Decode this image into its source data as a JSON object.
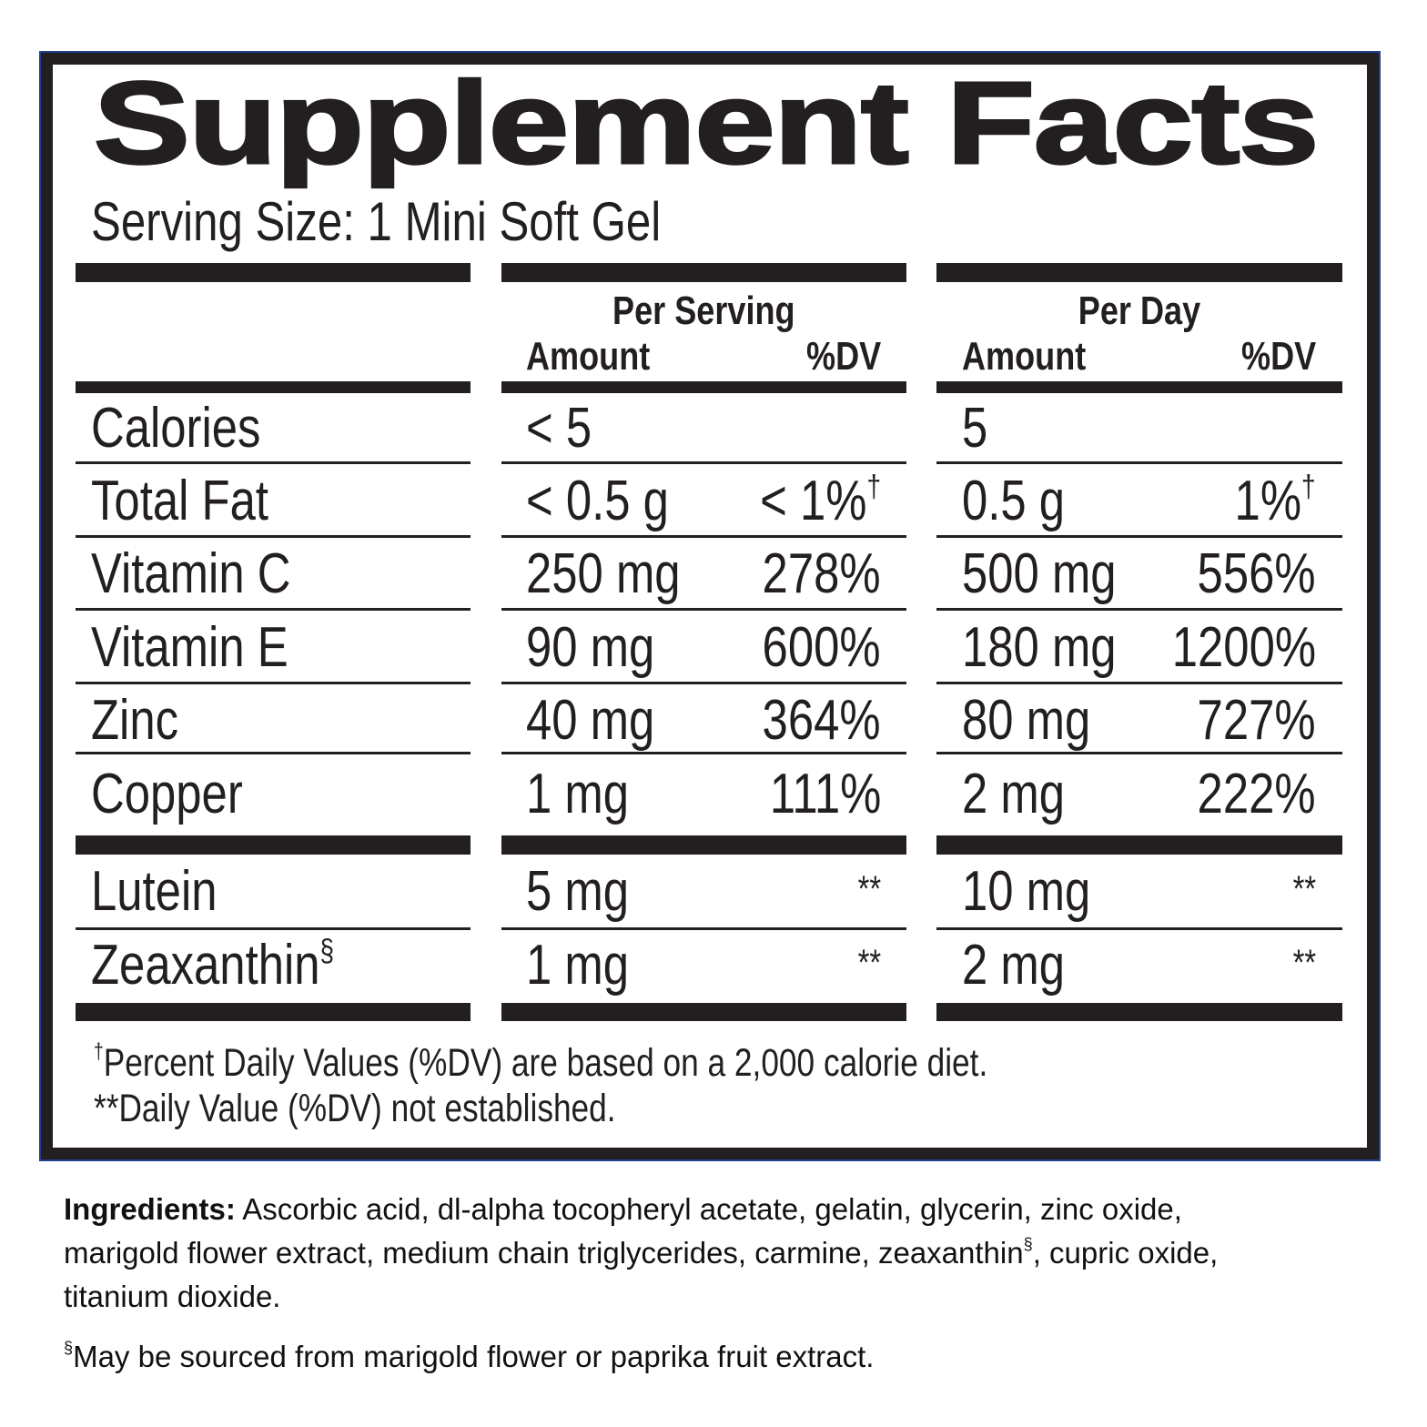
{
  "title": "Supplement Facts",
  "serving_size": "Serving Size: 1 Mini Soft Gel",
  "columns": {
    "per_serving": "Per Serving",
    "per_day": "Per Day",
    "amount": "Amount",
    "dv": "%DV"
  },
  "rows": [
    {
      "name": "Calories",
      "serv_amt": "< 5",
      "serv_dv": "",
      "serv_dv_mark": "",
      "day_amt": "5",
      "day_dv": "",
      "day_dv_mark": "",
      "name_mark": ""
    },
    {
      "name": "Total Fat",
      "serv_amt": "< 0.5 g",
      "serv_dv": "< 1%",
      "serv_dv_mark": "†",
      "day_amt": "0.5 g",
      "day_dv": "1%",
      "day_dv_mark": "†",
      "name_mark": ""
    },
    {
      "name": "Vitamin C",
      "serv_amt": "250 mg",
      "serv_dv": "278%",
      "serv_dv_mark": "",
      "day_amt": "500 mg",
      "day_dv": "556%",
      "day_dv_mark": "",
      "name_mark": ""
    },
    {
      "name": "Vitamin E",
      "serv_amt": "90 mg",
      "serv_dv": "600%",
      "serv_dv_mark": "",
      "day_amt": "180 mg",
      "day_dv": "1200%",
      "day_dv_mark": "",
      "name_mark": ""
    },
    {
      "name": "Zinc",
      "serv_amt": "40 mg",
      "serv_dv": "364%",
      "serv_dv_mark": "",
      "day_amt": "80 mg",
      "day_dv": "727%",
      "day_dv_mark": "",
      "name_mark": ""
    },
    {
      "name": "Copper",
      "serv_amt": "1 mg",
      "serv_dv": "111%",
      "serv_dv_mark": "",
      "day_amt": "2 mg",
      "day_dv": "222%",
      "day_dv_mark": "",
      "name_mark": ""
    },
    {
      "name": "Lutein",
      "serv_amt": "5 mg",
      "serv_dv": "**",
      "serv_dv_mark": "",
      "day_amt": "10 mg",
      "day_dv": "**",
      "day_dv_mark": "",
      "name_mark": ""
    },
    {
      "name": "Zeaxanthin",
      "serv_amt": "1 mg",
      "serv_dv": "**",
      "serv_dv_mark": "",
      "day_amt": "2 mg",
      "day_dv": "**",
      "day_dv_mark": "",
      "name_mark": "§"
    }
  ],
  "footnotes": {
    "dagger_mark": "†",
    "dagger": "Percent Daily Values (%DV) are based on a 2,000 calorie diet.",
    "stars": "**Daily Value (%DV) not established."
  },
  "ingredients": {
    "label": "Ingredients:",
    "line1": " Ascorbic acid, dl-alpha tocopheryl acetate, gelatin, glycerin, zinc oxide,",
    "line2a": "marigold flower extract, medium chain triglycerides, carmine, zeaxanthin",
    "line2_mark": "§",
    "line2b": ", cupric oxide,",
    "line3": "titanium dioxide.",
    "source_mark": "§",
    "source": "May be sourced from marigold flower or paprika fruit extract."
  },
  "colors": {
    "ink": "#231f20",
    "border_edge": "#1f3f8f"
  }
}
